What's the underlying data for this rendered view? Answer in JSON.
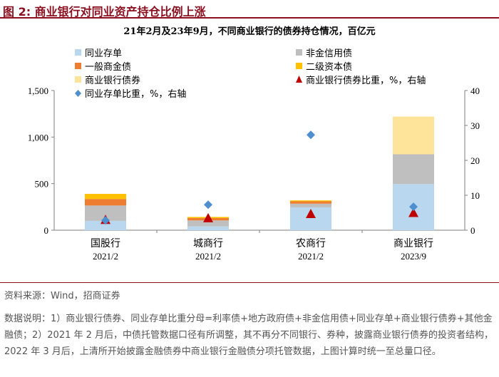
{
  "figure": {
    "title": "图 2:  商业银行对同业资产持仓比例上涨",
    "source": "资料来源：Wind，招商证券",
    "notes": "数据说明：1）商业银行债券、同业存单比重分母=利率债+地方政府债+非金信用债+同业存单+商业银行债券+其他金融债；2）2021 年 2 月后，中债托管数据口径有所调整，其不再分不同银行、券种，披露商业银行债券的投资者结构，2022 年 3 月后，上清所开始披露金融债券中商业银行金融债分项托管数据，上图计算时统一至总量口径。"
  },
  "chart_data": {
    "type": "bar",
    "title": "21年2月及23年9月，不同商业银行的债券持仓情况，百亿元",
    "categories": [
      "国股行",
      "城商行",
      "农商行",
      "商业银行"
    ],
    "category_dates": [
      "2021/2",
      "2021/2",
      "2021/2",
      "2023/9"
    ],
    "stacked": true,
    "series": [
      {
        "name": "同业存单",
        "color": "#b9d7ee",
        "values": [
          100,
          40,
          245,
          495
        ]
      },
      {
        "name": "非金信用债",
        "color": "#bfbfbf",
        "values": [
          165,
          65,
          40,
          320
        ]
      },
      {
        "name": "一般商金债",
        "color": "#ee7d31",
        "values": [
          70,
          25,
          25,
          0
        ]
      },
      {
        "name": "二级资本债",
        "color": "#ffc000",
        "values": [
          55,
          12,
          10,
          0
        ]
      },
      {
        "name": "商业银行债券",
        "color": "#fde49a",
        "values": [
          0,
          0,
          0,
          405
        ]
      }
    ],
    "point_series": [
      {
        "name": "商业银行债券比重，%，右轴",
        "marker": "triangle",
        "color": "#c00000",
        "values": [
          3.0,
          3.5,
          4.7,
          5.0
        ]
      },
      {
        "name": "同业存单比重，%，右轴",
        "marker": "diamond",
        "color": "#4f8fd0",
        "values": [
          2.8,
          7.3,
          27.3,
          6.7
        ]
      }
    ],
    "y_left": {
      "min": 0,
      "max": 1500,
      "ticks": [
        0,
        500,
        1000,
        1500
      ],
      "tick_labels": [
        "0",
        "500",
        "1,000",
        "1,500"
      ]
    },
    "y_right": {
      "min": 0,
      "max": 40,
      "ticks": [
        0,
        10,
        20,
        30,
        40
      ],
      "tick_labels": [
        "0",
        "10",
        "20",
        "30",
        "40"
      ]
    },
    "legend": [
      {
        "label": "同业存单",
        "swatch": "square",
        "color": "#b9d7ee"
      },
      {
        "label": "非金信用债",
        "swatch": "square",
        "color": "#bfbfbf"
      },
      {
        "label": "一般商金债",
        "swatch": "square",
        "color": "#ee7d31"
      },
      {
        "label": "二级资本债",
        "swatch": "square",
        "color": "#ffc000"
      },
      {
        "label": "商业银行债券",
        "swatch": "square",
        "color": "#fde49a"
      },
      {
        "label": "商业银行债券比重，%，右轴",
        "swatch": "triangle",
        "color": "#c00000"
      },
      {
        "label": "同业存单比重，%，右轴",
        "swatch": "diamond",
        "color": "#4f8fd0"
      }
    ],
    "legend_position": "top",
    "grid": false
  }
}
